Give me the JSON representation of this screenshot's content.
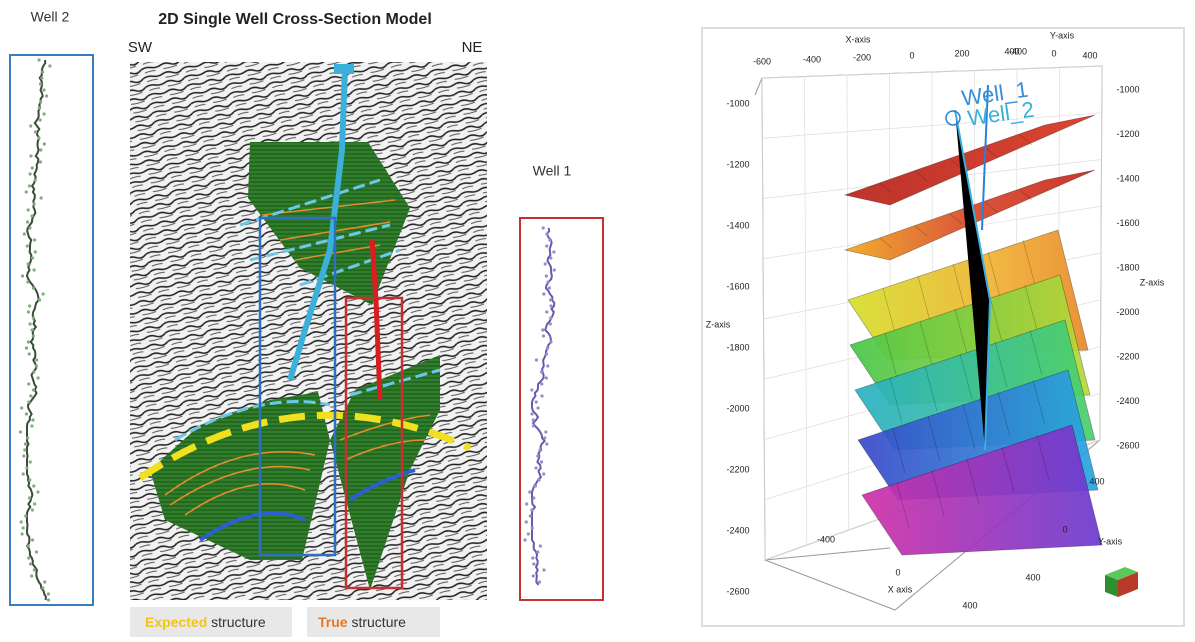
{
  "left_figure": {
    "well_2": {
      "label": "Well 2"
    },
    "section": {
      "title": "2D Single Well Cross-Section Model",
      "left_direction": "SW",
      "right_direction": "NE"
    },
    "well_1": {
      "label": "Well 1"
    },
    "legend": [
      {
        "highlight": "Expected",
        "text": "structure"
      },
      {
        "highlight": "True",
        "text": "structure"
      }
    ]
  },
  "right_figure": {
    "x_axis_label": "X-axis",
    "y_axis_label": "Y-axis",
    "z_axis_label": "Z-axis",
    "z_axis_label_right": "Z-axis",
    "x_axis_label_bottom": "X axis",
    "y_axis_label_bottom": "Y-axis",
    "well_labels": [
      "Well_1",
      "Well_2"
    ],
    "top_x_ticks": [
      -600,
      -400,
      -200,
      0,
      200,
      400
    ],
    "top_y_ticks": [
      -400,
      0,
      400
    ],
    "left_z_ticks": [
      -1000,
      -1200,
      -1400,
      -1600,
      -1800,
      -2000,
      -2200,
      -2400,
      -2600
    ],
    "right_z_ticks": [
      -1000,
      -1200,
      -1400,
      -1600,
      -1800,
      -2000,
      -2200,
      -2400,
      -2600
    ],
    "bottom_x_ticks": [
      -400,
      0,
      400
    ],
    "bottom_y_ticks": [
      400,
      0,
      400
    ]
  }
}
